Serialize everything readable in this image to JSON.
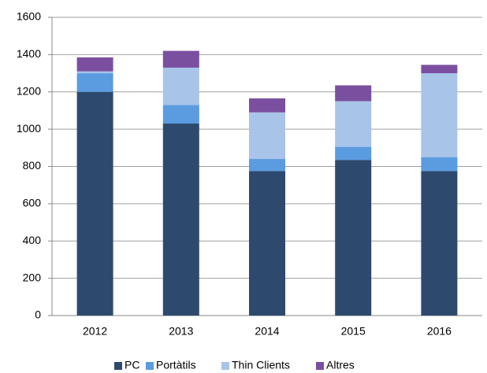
{
  "chart_data": {
    "type": "stacked_bar",
    "categories": [
      "2012",
      "2013",
      "2014",
      "2015",
      "2016"
    ],
    "series": [
      {
        "name": "PC",
        "color": "#2d4a6e",
        "values": [
          1200,
          1030,
          775,
          835,
          775
        ]
      },
      {
        "name": "Portàtils",
        "color": "#5b9be0",
        "values": [
          100,
          100,
          65,
          70,
          75
        ]
      },
      {
        "name": "Thin Clients",
        "color": "#a8c4e8",
        "values": [
          10,
          200,
          250,
          245,
          450
        ]
      },
      {
        "name": "Altres",
        "color": "#7b4fa0",
        "values": [
          75,
          90,
          75,
          85,
          45
        ]
      }
    ],
    "ylim": [
      0,
      1600
    ],
    "yticks": [
      0,
      200,
      400,
      600,
      800,
      1000,
      1200,
      1400,
      1600
    ],
    "grid": true,
    "legend": "bottom"
  }
}
